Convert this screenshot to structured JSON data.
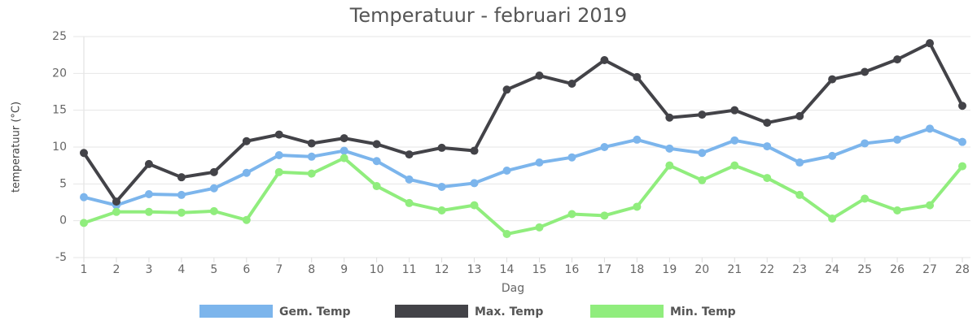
{
  "chart_data": {
    "type": "line",
    "title": "Temperatuur - februari 2019",
    "x_label": "Dag",
    "y_label": "temperatuur (°C)",
    "categories": [
      "1",
      "2",
      "3",
      "4",
      "5",
      "6",
      "7",
      "8",
      "9",
      "10",
      "11",
      "12",
      "13",
      "14",
      "15",
      "16",
      "17",
      "18",
      "19",
      "20",
      "21",
      "22",
      "23",
      "24",
      "25",
      "26",
      "27",
      "28"
    ],
    "series": [
      {
        "name": "Gem. Temp",
        "color": "#7cb5ec",
        "values": [
          3.2,
          2.1,
          3.6,
          3.5,
          4.4,
          6.5,
          8.9,
          8.7,
          9.5,
          8.1,
          5.6,
          4.6,
          5.1,
          6.8,
          7.9,
          8.6,
          10.0,
          11.0,
          9.8,
          9.2,
          10.9,
          10.1,
          7.9,
          8.8,
          10.5,
          11.0,
          12.5,
          10.7
        ]
      },
      {
        "name": "Max. Temp",
        "color": "#434348",
        "values": [
          9.2,
          2.6,
          7.7,
          5.9,
          6.6,
          10.8,
          11.7,
          10.5,
          11.2,
          10.4,
          9.0,
          9.9,
          9.5,
          17.8,
          19.7,
          18.6,
          21.8,
          19.5,
          14.0,
          14.4,
          15.0,
          13.3,
          14.2,
          19.2,
          20.2,
          21.9,
          24.1,
          15.6
        ]
      },
      {
        "name": "Min. Temp",
        "color": "#90ed7d",
        "values": [
          -0.3,
          1.2,
          1.2,
          1.1,
          1.3,
          0.1,
          6.6,
          6.4,
          8.5,
          4.7,
          2.4,
          1.4,
          2.1,
          -1.8,
          -0.9,
          0.9,
          0.7,
          1.9,
          7.5,
          5.5,
          7.5,
          5.8,
          3.5,
          0.3,
          3.0,
          1.4,
          2.1,
          7.4
        ]
      }
    ],
    "ylim": [
      -5,
      25
    ],
    "yticks": [
      -5,
      0,
      5,
      10,
      15,
      20,
      25
    ],
    "grid": true,
    "legend": "bottom"
  }
}
